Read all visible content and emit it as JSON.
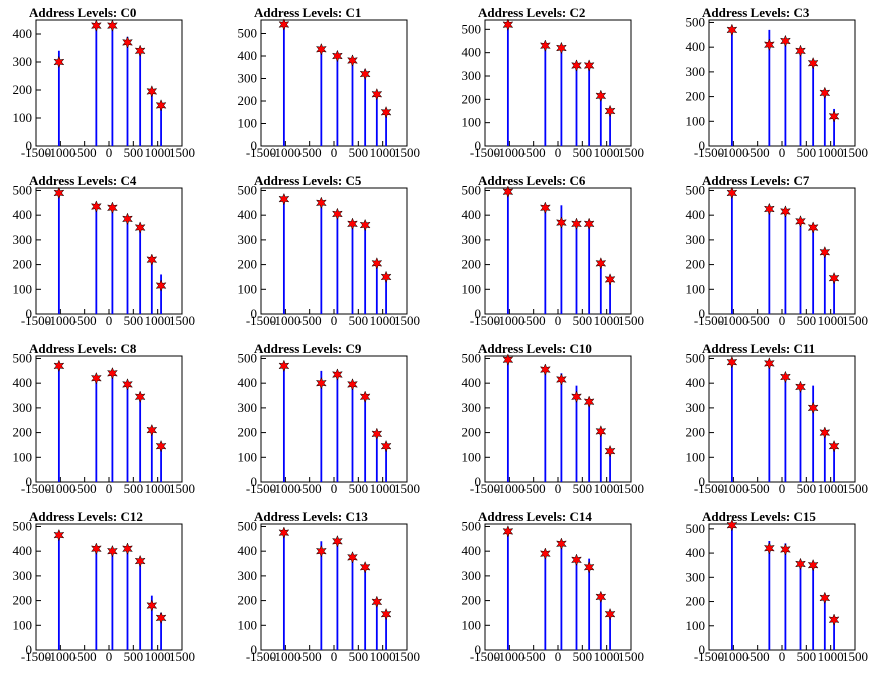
{
  "window": {
    "title": "Address Levels"
  },
  "colors": {
    "histogram": "#0000ff",
    "marker_fill": "#ff0000",
    "marker_edge": "#000000",
    "axis": "#000000"
  },
  "chart_data": [
    {
      "type": "bar",
      "title": "Address Levels: C0",
      "xlim": [
        -1500,
        1500
      ],
      "ylim": [
        0,
        450
      ],
      "xticks": [
        "-1500",
        "-1000",
        "-500",
        "0",
        "500",
        "1000",
        "1500"
      ],
      "yticks": [
        0,
        100,
        200,
        300,
        400
      ],
      "bars": [
        [
          -1030,
          340
        ],
        [
          -260,
          430
        ],
        [
          70,
          430
        ],
        [
          380,
          390
        ],
        [
          640,
          345
        ],
        [
          880,
          200
        ],
        [
          1070,
          150
        ]
      ],
      "peaks": [
        [
          -1030,
          300
        ],
        [
          -260,
          430
        ],
        [
          70,
          430
        ],
        [
          380,
          370
        ],
        [
          640,
          340
        ],
        [
          880,
          195
        ],
        [
          1070,
          145
        ]
      ]
    },
    {
      "type": "bar",
      "title": "Address Levels: C1",
      "xlim": [
        -1500,
        1500
      ],
      "ylim": [
        0,
        560
      ],
      "xticks": [
        "-1500",
        "-1000",
        "-500",
        "0",
        "500",
        "1000",
        "1500"
      ],
      "yticks": [
        0,
        100,
        200,
        300,
        400,
        500
      ],
      "bars": [
        [
          -1030,
          540
        ],
        [
          -260,
          430
        ],
        [
          70,
          410
        ],
        [
          380,
          390
        ],
        [
          640,
          340
        ],
        [
          880,
          230
        ],
        [
          1070,
          150
        ]
      ],
      "peaks": [
        [
          -1030,
          540
        ],
        [
          -260,
          430
        ],
        [
          70,
          400
        ],
        [
          380,
          380
        ],
        [
          640,
          320
        ],
        [
          880,
          230
        ],
        [
          1070,
          150
        ]
      ]
    },
    {
      "type": "bar",
      "title": "Address Levels: C2",
      "xlim": [
        -1500,
        1500
      ],
      "ylim": [
        0,
        540
      ],
      "xticks": [
        "-1500",
        "-1000",
        "-500",
        "0",
        "500",
        "1000",
        "1500"
      ],
      "yticks": [
        0,
        100,
        200,
        300,
        400,
        500
      ],
      "bars": [
        [
          -1030,
          520
        ],
        [
          -260,
          430
        ],
        [
          70,
          420
        ],
        [
          380,
          360
        ],
        [
          640,
          350
        ],
        [
          880,
          220
        ],
        [
          1070,
          150
        ]
      ],
      "peaks": [
        [
          -1030,
          520
        ],
        [
          -260,
          430
        ],
        [
          70,
          420
        ],
        [
          380,
          345
        ],
        [
          640,
          345
        ],
        [
          880,
          215
        ],
        [
          1070,
          150
        ]
      ]
    },
    {
      "type": "bar",
      "title": "Address Levels: C3",
      "xlim": [
        -1500,
        1500
      ],
      "ylim": [
        0,
        510
      ],
      "xticks": [
        "-1500",
        "-1000",
        "-500",
        "0",
        "500",
        "1000",
        "1500"
      ],
      "yticks": [
        0,
        100,
        200,
        300,
        400,
        500
      ],
      "bars": [
        [
          -1030,
          470
        ],
        [
          -260,
          470
        ],
        [
          70,
          430
        ],
        [
          380,
          400
        ],
        [
          640,
          350
        ],
        [
          880,
          225
        ],
        [
          1070,
          150
        ]
      ],
      "peaks": [
        [
          -1030,
          470
        ],
        [
          -260,
          410
        ],
        [
          70,
          425
        ],
        [
          380,
          385
        ],
        [
          640,
          335
        ],
        [
          880,
          215
        ],
        [
          1070,
          120
        ]
      ]
    },
    {
      "type": "bar",
      "title": "Address Levels: C4",
      "xlim": [
        -1500,
        1500
      ],
      "ylim": [
        0,
        510
      ],
      "xticks": [
        "-1500",
        "-1000",
        "-500",
        "0",
        "500",
        "1000",
        "1500"
      ],
      "yticks": [
        0,
        100,
        200,
        300,
        400,
        500
      ],
      "bars": [
        [
          -1030,
          490
        ],
        [
          -260,
          440
        ],
        [
          70,
          430
        ],
        [
          380,
          390
        ],
        [
          640,
          350
        ],
        [
          880,
          220
        ],
        [
          1070,
          160
        ]
      ],
      "peaks": [
        [
          -1030,
          490
        ],
        [
          -260,
          435
        ],
        [
          70,
          430
        ],
        [
          380,
          385
        ],
        [
          640,
          350
        ],
        [
          880,
          220
        ],
        [
          1070,
          115
        ]
      ]
    },
    {
      "type": "bar",
      "title": "Address Levels: C5",
      "xlim": [
        -1500,
        1500
      ],
      "ylim": [
        0,
        510
      ],
      "xticks": [
        "-1500",
        "-1000",
        "-500",
        "0",
        "500",
        "1000",
        "1500"
      ],
      "yticks": [
        0,
        100,
        200,
        300,
        400,
        500
      ],
      "bars": [
        [
          -1030,
          470
        ],
        [
          -260,
          450
        ],
        [
          70,
          410
        ],
        [
          380,
          370
        ],
        [
          640,
          370
        ],
        [
          880,
          210
        ],
        [
          1070,
          160
        ]
      ],
      "peaks": [
        [
          -1030,
          465
        ],
        [
          -260,
          450
        ],
        [
          70,
          405
        ],
        [
          380,
          365
        ],
        [
          640,
          360
        ],
        [
          880,
          205
        ],
        [
          1070,
          150
        ]
      ]
    },
    {
      "type": "bar",
      "title": "Address Levels: C6",
      "xlim": [
        -1500,
        1500
      ],
      "ylim": [
        0,
        510
      ],
      "xticks": [
        "-1500",
        "-1000",
        "-500",
        "0",
        "500",
        "1000",
        "1500"
      ],
      "yticks": [
        0,
        100,
        200,
        300,
        400,
        500
      ],
      "bars": [
        [
          -1030,
          495
        ],
        [
          -260,
          430
        ],
        [
          70,
          440
        ],
        [
          380,
          380
        ],
        [
          640,
          370
        ],
        [
          880,
          210
        ],
        [
          1070,
          140
        ]
      ],
      "peaks": [
        [
          -1030,
          495
        ],
        [
          -260,
          430
        ],
        [
          70,
          370
        ],
        [
          380,
          365
        ],
        [
          640,
          365
        ],
        [
          880,
          205
        ],
        [
          1070,
          140
        ]
      ]
    },
    {
      "type": "bar",
      "title": "Address Levels: C7",
      "xlim": [
        -1500,
        1500
      ],
      "ylim": [
        0,
        510
      ],
      "xticks": [
        "-1500",
        "-1000",
        "-500",
        "0",
        "500",
        "1000",
        "1500"
      ],
      "yticks": [
        0,
        100,
        200,
        300,
        400,
        500
      ],
      "bars": [
        [
          -1030,
          490
        ],
        [
          -260,
          430
        ],
        [
          70,
          420
        ],
        [
          380,
          380
        ],
        [
          640,
          360
        ],
        [
          880,
          260
        ],
        [
          1070,
          150
        ]
      ],
      "peaks": [
        [
          -1030,
          490
        ],
        [
          -260,
          425
        ],
        [
          70,
          415
        ],
        [
          380,
          375
        ],
        [
          640,
          350
        ],
        [
          880,
          250
        ],
        [
          1070,
          145
        ]
      ]
    },
    {
      "type": "bar",
      "title": "Address Levels: C8",
      "xlim": [
        -1500,
        1500
      ],
      "ylim": [
        0,
        510
      ],
      "xticks": [
        "-1500",
        "-1000",
        "-500",
        "0",
        "500",
        "1000",
        "1500"
      ],
      "yticks": [
        0,
        100,
        200,
        300,
        400,
        500
      ],
      "bars": [
        [
          -1030,
          470
        ],
        [
          -260,
          430
        ],
        [
          70,
          450
        ],
        [
          380,
          400
        ],
        [
          640,
          350
        ],
        [
          880,
          220
        ],
        [
          1070,
          150
        ]
      ],
      "peaks": [
        [
          -1030,
          470
        ],
        [
          -260,
          420
        ],
        [
          70,
          440
        ],
        [
          380,
          395
        ],
        [
          640,
          345
        ],
        [
          880,
          210
        ],
        [
          1070,
          145
        ]
      ]
    },
    {
      "type": "bar",
      "title": "Address Levels: C9",
      "xlim": [
        -1500,
        1500
      ],
      "ylim": [
        0,
        510
      ],
      "xticks": [
        "-1500",
        "-1000",
        "-500",
        "0",
        "500",
        "1000",
        "1500"
      ],
      "yticks": [
        0,
        100,
        200,
        300,
        400,
        500
      ],
      "bars": [
        [
          -1030,
          470
        ],
        [
          -260,
          450
        ],
        [
          70,
          440
        ],
        [
          380,
          400
        ],
        [
          640,
          350
        ],
        [
          880,
          200
        ],
        [
          1070,
          150
        ]
      ],
      "peaks": [
        [
          -1030,
          470
        ],
        [
          -260,
          400
        ],
        [
          70,
          435
        ],
        [
          380,
          395
        ],
        [
          640,
          345
        ],
        [
          880,
          195
        ],
        [
          1070,
          145
        ]
      ]
    },
    {
      "type": "bar",
      "title": "Address Levels: C10",
      "xlim": [
        -1500,
        1500
      ],
      "ylim": [
        0,
        510
      ],
      "xticks": [
        "-1500",
        "-1000",
        "-500",
        "0",
        "500",
        "1000",
        "1500"
      ],
      "yticks": [
        0,
        100,
        200,
        300,
        400,
        500
      ],
      "bars": [
        [
          -1030,
          500
        ],
        [
          -260,
          460
        ],
        [
          70,
          440
        ],
        [
          380,
          390
        ],
        [
          640,
          330
        ],
        [
          880,
          210
        ],
        [
          1070,
          130
        ]
      ],
      "peaks": [
        [
          -1030,
          495
        ],
        [
          -260,
          455
        ],
        [
          70,
          415
        ],
        [
          380,
          345
        ],
        [
          640,
          325
        ],
        [
          880,
          205
        ],
        [
          1070,
          125
        ]
      ]
    },
    {
      "type": "bar",
      "title": "Address Levels: C11",
      "xlim": [
        -1500,
        1500
      ],
      "ylim": [
        0,
        510
      ],
      "xticks": [
        "-1500",
        "-1000",
        "-500",
        "0",
        "500",
        "1000",
        "1500"
      ],
      "yticks": [
        0,
        100,
        200,
        300,
        400,
        500
      ],
      "bars": [
        [
          -1030,
          490
        ],
        [
          -260,
          480
        ],
        [
          70,
          430
        ],
        [
          380,
          390
        ],
        [
          640,
          390
        ],
        [
          880,
          210
        ],
        [
          1070,
          150
        ]
      ],
      "peaks": [
        [
          -1030,
          485
        ],
        [
          -260,
          480
        ],
        [
          70,
          425
        ],
        [
          380,
          385
        ],
        [
          640,
          300
        ],
        [
          880,
          200
        ],
        [
          1070,
          145
        ]
      ]
    },
    {
      "type": "bar",
      "title": "Address Levels: C12",
      "xlim": [
        -1500,
        1500
      ],
      "ylim": [
        0,
        510
      ],
      "xticks": [
        "-1500",
        "-1000",
        "-500",
        "0",
        "500",
        "1000",
        "1500"
      ],
      "yticks": [
        0,
        100,
        200,
        300,
        400,
        500
      ],
      "bars": [
        [
          -1030,
          470
        ],
        [
          -260,
          410
        ],
        [
          70,
          410
        ],
        [
          380,
          410
        ],
        [
          640,
          370
        ],
        [
          880,
          220
        ],
        [
          1070,
          150
        ]
      ],
      "peaks": [
        [
          -1030,
          465
        ],
        [
          -260,
          410
        ],
        [
          70,
          400
        ],
        [
          380,
          410
        ],
        [
          640,
          360
        ],
        [
          880,
          180
        ],
        [
          1070,
          130
        ]
      ]
    },
    {
      "type": "bar",
      "title": "Address Levels: C13",
      "xlim": [
        -1500,
        1500
      ],
      "ylim": [
        0,
        510
      ],
      "xticks": [
        "-1500",
        "-1000",
        "-500",
        "0",
        "500",
        "1000",
        "1500"
      ],
      "yticks": [
        0,
        100,
        200,
        300,
        400,
        500
      ],
      "bars": [
        [
          -1030,
          480
        ],
        [
          -260,
          440
        ],
        [
          70,
          440
        ],
        [
          380,
          390
        ],
        [
          640,
          340
        ],
        [
          880,
          200
        ],
        [
          1070,
          150
        ]
      ],
      "peaks": [
        [
          -1030,
          475
        ],
        [
          -260,
          400
        ],
        [
          70,
          440
        ],
        [
          380,
          375
        ],
        [
          640,
          335
        ],
        [
          880,
          195
        ],
        [
          1070,
          145
        ]
      ]
    },
    {
      "type": "bar",
      "title": "Address Levels: C14",
      "xlim": [
        -1500,
        1500
      ],
      "ylim": [
        0,
        510
      ],
      "xticks": [
        "-1500",
        "-1000",
        "-500",
        "0",
        "500",
        "1000",
        "1500"
      ],
      "yticks": [
        0,
        100,
        200,
        300,
        400,
        500
      ],
      "bars": [
        [
          -1030,
          480
        ],
        [
          -260,
          400
        ],
        [
          70,
          440
        ],
        [
          380,
          370
        ],
        [
          640,
          370
        ],
        [
          880,
          220
        ],
        [
          1070,
          150
        ]
      ],
      "peaks": [
        [
          -1030,
          480
        ],
        [
          -260,
          390
        ],
        [
          70,
          430
        ],
        [
          380,
          365
        ],
        [
          640,
          335
        ],
        [
          880,
          215
        ],
        [
          1070,
          145
        ]
      ]
    },
    {
      "type": "bar",
      "title": "Address Levels: C15",
      "xlim": [
        -1500,
        1500
      ],
      "ylim": [
        0,
        520
      ],
      "xticks": [
        "-1500",
        "-1000",
        "-500",
        "0",
        "500",
        "1000",
        "1500"
      ],
      "yticks": [
        0,
        100,
        200,
        300,
        400,
        500
      ],
      "bars": [
        [
          -1030,
          515
        ],
        [
          -260,
          450
        ],
        [
          70,
          440
        ],
        [
          380,
          370
        ],
        [
          640,
          360
        ],
        [
          880,
          220
        ],
        [
          1070,
          140
        ]
      ],
      "peaks": [
        [
          -1030,
          515
        ],
        [
          -260,
          420
        ],
        [
          70,
          415
        ],
        [
          380,
          355
        ],
        [
          640,
          350
        ],
        [
          880,
          215
        ],
        [
          1070,
          125
        ]
      ]
    }
  ]
}
